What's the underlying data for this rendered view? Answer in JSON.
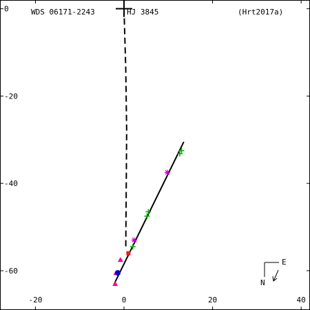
{
  "header": {
    "wds_id": "WDS 06171-2243",
    "discoverer": "HJ 3845",
    "reference": "(Hrt2017a)"
  },
  "orientation": {
    "east_label": "E",
    "north_label": "N"
  },
  "chart_data": {
    "type": "scatter",
    "xlim": [
      -28,
      42
    ],
    "ylim": [
      -69,
      2
    ],
    "x_ticks": [
      -20,
      0,
      20,
      40
    ],
    "y_ticks": [
      0,
      -20,
      -40,
      -60
    ],
    "grid": false,
    "primary": {
      "x": 0,
      "y": 0
    },
    "orbit_line": [
      [
        -2.2,
        -63
      ],
      [
        13.5,
        -30.5
      ]
    ],
    "dashed_line": [
      [
        0,
        0
      ],
      [
        0.4,
        -14
      ],
      [
        0.6,
        -28
      ],
      [
        0.4,
        -55
      ]
    ],
    "series": [
      {
        "marker": "plus",
        "color": "#00aa00",
        "points": [
          [
            13,
            -32.5
          ],
          [
            12.6,
            -33.2
          ],
          [
            5.5,
            -46.5
          ],
          [
            5.2,
            -47.5
          ],
          [
            2.0,
            -54.5
          ]
        ]
      },
      {
        "marker": "asterisk",
        "color": "#cc00cc",
        "points": [
          [
            9.8,
            -37.5
          ],
          [
            2.3,
            -53
          ]
        ]
      },
      {
        "marker": "triangle",
        "color": "#ff0090",
        "points": [
          [
            -0.8,
            -57.5
          ],
          [
            -1.8,
            -60.5
          ],
          [
            -2.0,
            -63.0
          ]
        ]
      },
      {
        "marker": "square",
        "color": "#dd2222",
        "points": [
          [
            1.0,
            -56.0
          ]
        ]
      },
      {
        "marker": "circle",
        "color": "#0000cc",
        "points": [
          [
            -1.4,
            -60.5
          ]
        ]
      }
    ]
  }
}
